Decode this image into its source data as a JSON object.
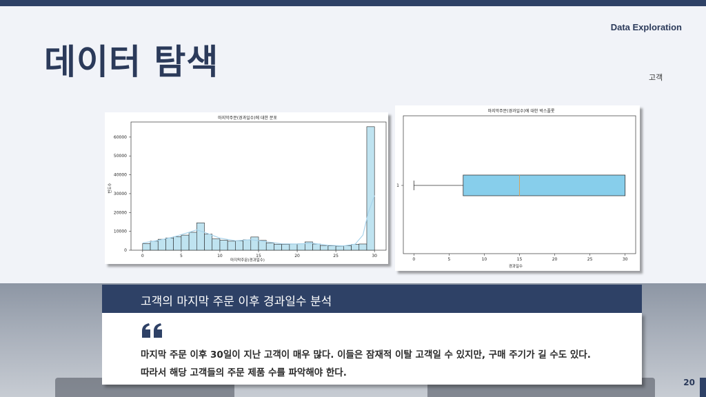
{
  "slide": {
    "title": "데이터 탐색",
    "section": "Data Exploration",
    "subtag": "고객",
    "page_number": "20"
  },
  "colors": {
    "navy": "#2e4166",
    "bar_fill": "#bfe3f0",
    "kde_line": "#a8d4ec",
    "box_fill": "#87ceeb",
    "median": "#d9a35a"
  },
  "banner": {
    "title": "고객의 마지막 주문 이후 경과일수 분석"
  },
  "quote": {
    "icon": "quote-icon",
    "line1": "마지막 주문 이후 30일이 지난 고객이 매우 많다. 이들은 잠재적 이탈 고객일 수 있지만, 구매 주기가 길 수도 있다.",
    "line2": "따라서 해당 고객들의 주문 제품 수를 파악해야 한다."
  },
  "chart_data": [
    {
      "type": "bar",
      "title": "마지막주문(경과일수)에 대한 분포",
      "xlabel": "마지막주문(경과일수)",
      "ylabel": "빈도수",
      "xlim": [
        -1.5,
        31.5
      ],
      "ylim": [
        0,
        68000
      ],
      "xticks": [
        0,
        5,
        10,
        15,
        20,
        25,
        30
      ],
      "yticks": [
        0,
        10000,
        20000,
        30000,
        40000,
        50000,
        60000
      ],
      "bin_edges": [
        0,
        1,
        2,
        3,
        4,
        5,
        6,
        7,
        8,
        9,
        10,
        11,
        12,
        13,
        14,
        15,
        16,
        17,
        18,
        19,
        20,
        21,
        22,
        23,
        24,
        25,
        26,
        27,
        28,
        29,
        30
      ],
      "values": [
        3500,
        4800,
        5800,
        6500,
        7200,
        8000,
        9500,
        14500,
        8500,
        6000,
        5300,
        4800,
        5000,
        5500,
        7000,
        5200,
        3800,
        3200,
        3100,
        3200,
        3400,
        4400,
        3300,
        2500,
        2300,
        2200,
        2400,
        3100,
        3300,
        65500
      ],
      "kde": [
        [
          0,
          3800
        ],
        [
          2,
          5200
        ],
        [
          4,
          7000
        ],
        [
          6,
          9500
        ],
        [
          7,
          10800
        ],
        [
          8,
          9500
        ],
        [
          10,
          6400
        ],
        [
          12,
          5000
        ],
        [
          14,
          5600
        ],
        [
          16,
          4500
        ],
        [
          18,
          3400
        ],
        [
          20,
          3300
        ],
        [
          22,
          3700
        ],
        [
          24,
          2600
        ],
        [
          26,
          2300
        ],
        [
          27.5,
          3200
        ],
        [
          28.5,
          8000
        ],
        [
          29.2,
          20000
        ],
        [
          30,
          29000
        ]
      ],
      "grid": false
    },
    {
      "type": "box",
      "title": "마지막주문(경과일수)에 대한 박스플롯",
      "xlabel": "경과일수",
      "ytick_label": "1",
      "xlim": [
        -1.5,
        31.5
      ],
      "xticks": [
        0,
        5,
        10,
        15,
        20,
        25,
        30
      ],
      "whisker_low": 0,
      "q1": 7,
      "median": 15,
      "q3": 30,
      "whisker_high": 30
    }
  ]
}
